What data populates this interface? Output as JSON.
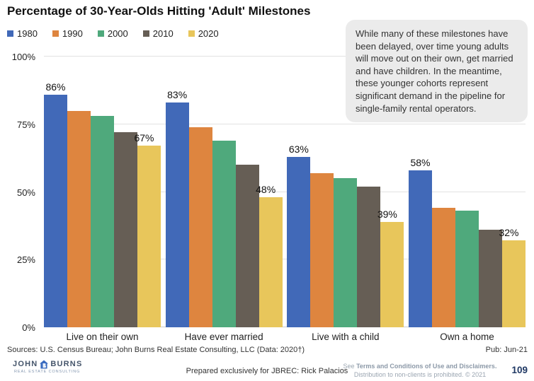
{
  "title": "Percentage of 30-Year-Olds Hitting 'Adult' Milestones",
  "chart_data": {
    "type": "bar",
    "title": "Percentage of 30-Year-Olds Hitting 'Adult' Milestones",
    "categories": [
      "Live on their own",
      "Have ever married",
      "Live with a child",
      "Own a home"
    ],
    "series": [
      {
        "name": "1980",
        "color": "#4169b8",
        "values": [
          86,
          83,
          63,
          58
        ]
      },
      {
        "name": "1990",
        "color": "#de853f",
        "values": [
          80,
          74,
          57,
          44
        ]
      },
      {
        "name": "2000",
        "color": "#4fa97c",
        "values": [
          78,
          69,
          55,
          43
        ]
      },
      {
        "name": "2010",
        "color": "#665e55",
        "values": [
          72,
          60,
          52,
          36
        ]
      },
      {
        "name": "2020",
        "color": "#e8c65b",
        "values": [
          67,
          48,
          39,
          32
        ]
      }
    ],
    "data_labels": {
      "labeled_series": [
        "1980",
        "2020"
      ],
      "format": "percent",
      "shown": [
        "86%",
        "67%",
        "83%",
        "48%",
        "63%",
        "39%",
        "58%",
        "32%"
      ]
    },
    "xlabel": "",
    "ylabel": "",
    "ylim": [
      0,
      100
    ],
    "yticks": [
      0,
      25,
      50,
      75,
      100
    ],
    "ytick_labels": [
      "0%",
      "25%",
      "50%",
      "75%",
      "100%"
    ],
    "grid": true,
    "legend_position": "top-left"
  },
  "note_box": {
    "text": "While many of these milestones have been delayed, over time young adults will move out on their own, get married and have children. In the meantime, these younger cohorts represent significant demand in the pipeline for single-family rental operators.",
    "background_color": "#ebebeb"
  },
  "footer": {
    "sources": "Sources: U.S. Census Bureau; John Burns Real Estate Consulting, LLC (Data: 2020†)",
    "pub": "Pub: Jun-21",
    "prepared": "Prepared exclusively for JBREC: Rick Palacios",
    "terms_see": "See ",
    "terms_link": "Terms and Conditions of Use and Disclaimers.",
    "terms_line2": "Distribution to non-clients is prohibited. © 2021",
    "page_number": "109",
    "page_number_color": "#1f3864"
  },
  "logo": {
    "name_left": "JOHN",
    "name_right": "BURNS",
    "subtitle": "REAL ESTATE CONSULTING",
    "icon": "house-icon",
    "color": "#44546a",
    "icon_color": "#3a6bc0"
  }
}
